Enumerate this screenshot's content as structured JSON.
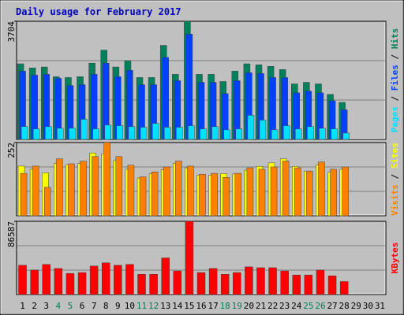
{
  "chart_data": [
    {
      "type": "bar",
      "title": "Daily usage for February 2017",
      "categories": [
        "1",
        "2",
        "3",
        "4",
        "5",
        "6",
        "7",
        "8",
        "9",
        "10",
        "11",
        "12",
        "13",
        "14",
        "15",
        "16",
        "17",
        "18",
        "19",
        "20",
        "21",
        "22",
        "23",
        "24",
        "25",
        "26",
        "27",
        "28",
        "29",
        "30",
        "31"
      ],
      "label_colors": [
        "#000000",
        "#000000",
        "#000000",
        "#00805c",
        "#00805c",
        "#000000",
        "#000000",
        "#000000",
        "#000000",
        "#000000",
        "#00805c",
        "#00805c",
        "#000000",
        "#000000",
        "#000000",
        "#000000",
        "#000000",
        "#00805c",
        "#00805c",
        "#000000",
        "#000000",
        "#000000",
        "#000000",
        "#000000",
        "#00805c",
        "#00805c",
        "#000000",
        "#000000",
        "#000000",
        "#000000",
        "#000000"
      ],
      "legend_separator": " / ",
      "ylim": [
        0,
        3704
      ],
      "yticks": [
        3704
      ],
      "series": [
        {
          "name": "Hits",
          "color": "#00805c",
          "values": [
            2370,
            2240,
            2270,
            1965,
            1940,
            1965,
            2390,
            2800,
            2270,
            2470,
            1940,
            1940,
            2950,
            2040,
            3704,
            2040,
            2040,
            1815,
            2140,
            2370,
            2340,
            2290,
            2190,
            1740,
            1790,
            1740,
            1410,
            1160,
            null,
            null,
            null
          ]
        },
        {
          "name": "Files",
          "color": "#0040ff",
          "values": [
            2140,
            2015,
            2040,
            1915,
            1690,
            1715,
            2040,
            2390,
            1965,
            2165,
            1715,
            1715,
            2570,
            1840,
            3300,
            1790,
            1790,
            1435,
            1840,
            2090,
            2065,
            1940,
            1940,
            1460,
            1510,
            1460,
            1210,
            930,
            null,
            null,
            null
          ]
        },
        {
          "name": "Pages",
          "color": "#00e0ff",
          "values": [
            400,
            330,
            400,
            350,
            350,
            630,
            330,
            450,
            430,
            400,
            380,
            500,
            380,
            380,
            430,
            330,
            400,
            300,
            330,
            755,
            605,
            300,
            430,
            330,
            400,
            350,
            330,
            200,
            null,
            null,
            null
          ]
        }
      ]
    },
    {
      "type": "bar",
      "legend_separator": " / ",
      "ylim": [
        0,
        252
      ],
      "yticks": [
        252
      ],
      "series": [
        {
          "name": "Sites",
          "color": "#ffff00",
          "values": [
            171,
            160,
            148,
            180,
            176,
            180,
            216,
            213,
            190,
            160,
            130,
            145,
            158,
            180,
            165,
            140,
            140,
            145,
            144,
            157,
            170,
            182,
            196,
            170,
            154,
            175,
            150,
            160,
            null,
            null,
            null
          ]
        },
        {
          "name": "Visits",
          "color": "#ff8000",
          "values": [
            146,
            171,
            98,
            196,
            179,
            188,
            204,
            252,
            204,
            174,
            134,
            151,
            168,
            188,
            171,
            143,
            146,
            132,
            146,
            165,
            160,
            168,
            188,
            165,
            154,
            185,
            160,
            168,
            null,
            null,
            null
          ]
        }
      ]
    },
    {
      "type": "bar",
      "ylim": [
        0,
        86587
      ],
      "yticks": [
        86587
      ],
      "series": [
        {
          "name": "KBytes",
          "color": "#ff0000",
          "values": [
            34600,
            28900,
            35600,
            30800,
            25000,
            26000,
            33700,
            37500,
            34600,
            35600,
            24000,
            24000,
            43300,
            27900,
            86587,
            26000,
            30800,
            24000,
            26000,
            32700,
            31700,
            31700,
            27900,
            23100,
            23100,
            28900,
            22100,
            15400,
            null,
            null,
            null
          ]
        }
      ]
    }
  ]
}
